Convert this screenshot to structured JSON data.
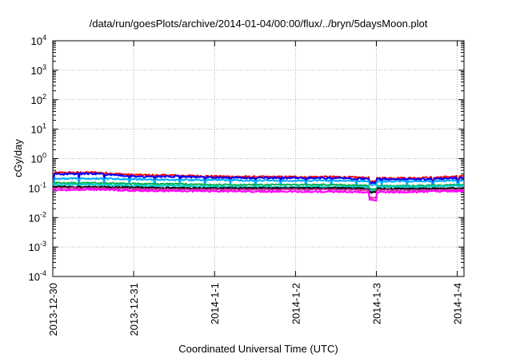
{
  "chart_data": {
    "type": "line",
    "title": "/data/run/goesPlots/archive/2014-01-04/00:00/flux/../bryn/5daysMoon.plot",
    "xlabel": "Coordinated Universal Time (UTC)",
    "ylabel": "cGy/day",
    "y_scale": "log",
    "ylim": [
      0.0001,
      10000
    ],
    "y_tick_labels": [
      {
        "base": "10",
        "exp": "-4"
      },
      {
        "base": "10",
        "exp": "-3"
      },
      {
        "base": "10",
        "exp": "-2"
      },
      {
        "base": "10",
        "exp": "-1"
      },
      {
        "base": "10",
        "exp": "0"
      },
      {
        "base": "10",
        "exp": "1"
      },
      {
        "base": "10",
        "exp": "2"
      },
      {
        "base": "10",
        "exp": "3"
      },
      {
        "base": "10",
        "exp": "4"
      }
    ],
    "xlim": [
      "2013-12-30",
      "2014-01-04 02:00"
    ],
    "x_tick_labels": [
      "2013-12-30",
      "2013-12-31",
      "2014-1-1",
      "2014-1-2",
      "2014-1-3",
      "2014-1-4"
    ],
    "grid": true,
    "series": [
      {
        "color": "#ff0000",
        "level": 0.28,
        "noise": 0.07,
        "points": [
          [
            "2013-12-30 00:00",
            0.33
          ],
          [
            "2013-12-30 12:00",
            0.34
          ],
          [
            "2013-12-31 00:00",
            0.28
          ],
          [
            "2013-12-31 12:00",
            0.27
          ],
          [
            "2014-01-01 00:00",
            0.25
          ],
          [
            "2014-01-01 12:00",
            0.24
          ],
          [
            "2014-01-02 00:00",
            0.24
          ],
          [
            "2014-01-02 12:00",
            0.24
          ],
          [
            "2014-01-03 00:00",
            0.22
          ],
          [
            "2014-01-03 12:00",
            0.22
          ],
          [
            "2014-01-04 02:00",
            0.25
          ]
        ]
      },
      {
        "color": "#0000ff",
        "level": 0.25,
        "noise": 0.07,
        "points": [
          [
            "2013-12-30 00:00",
            0.3
          ],
          [
            "2013-12-30 12:00",
            0.31
          ],
          [
            "2013-12-31 00:00",
            0.25
          ],
          [
            "2013-12-31 12:00",
            0.25
          ],
          [
            "2014-01-01 00:00",
            0.23
          ],
          [
            "2014-01-01 12:00",
            0.22
          ],
          [
            "2014-01-02 00:00",
            0.22
          ],
          [
            "2014-01-02 12:00",
            0.22
          ],
          [
            "2014-01-03 00:00",
            0.2
          ],
          [
            "2014-01-03 12:00",
            0.2
          ],
          [
            "2014-01-04 02:00",
            0.22
          ]
        ]
      },
      {
        "color": "#00aaff",
        "level": 0.2,
        "noise": 0.06,
        "points": [
          [
            "2013-12-30 00:00",
            0.21
          ],
          [
            "2013-12-30 12:00",
            0.21
          ],
          [
            "2013-12-31 00:00",
            0.2
          ],
          [
            "2013-12-31 12:00",
            0.19
          ],
          [
            "2014-01-01 00:00",
            0.19
          ],
          [
            "2014-01-01 12:00",
            0.18
          ],
          [
            "2014-01-02 00:00",
            0.18
          ],
          [
            "2014-01-02 12:00",
            0.18
          ],
          [
            "2014-01-03 00:00",
            0.17
          ],
          [
            "2014-01-03 12:00",
            0.17
          ],
          [
            "2014-01-04 02:00",
            0.18
          ]
        ]
      },
      {
        "color": "#00b050",
        "level": 0.14,
        "noise": 0.05,
        "points": [
          [
            "2013-12-30 00:00",
            0.15
          ],
          [
            "2013-12-30 12:00",
            0.15
          ],
          [
            "2013-12-31 00:00",
            0.14
          ],
          [
            "2013-12-31 12:00",
            0.14
          ],
          [
            "2014-01-01 00:00",
            0.13
          ],
          [
            "2014-01-01 12:00",
            0.13
          ],
          [
            "2014-01-02 00:00",
            0.13
          ],
          [
            "2014-01-02 12:00",
            0.13
          ],
          [
            "2014-01-03 00:00",
            0.12
          ],
          [
            "2014-01-03 12:00",
            0.12
          ],
          [
            "2014-01-04 02:00",
            0.13
          ]
        ]
      },
      {
        "color": "#00cccc",
        "level": 0.12,
        "noise": 0.05,
        "points": [
          [
            "2013-12-30 00:00",
            0.13
          ],
          [
            "2013-12-30 12:00",
            0.13
          ],
          [
            "2013-12-31 00:00",
            0.12
          ],
          [
            "2013-12-31 12:00",
            0.12
          ],
          [
            "2014-01-01 00:00",
            0.11
          ],
          [
            "2014-01-01 12:00",
            0.11
          ],
          [
            "2014-01-02 00:00",
            0.11
          ],
          [
            "2014-01-02 12:00",
            0.11
          ],
          [
            "2014-01-03 00:00",
            0.11
          ],
          [
            "2014-01-03 12:00",
            0.11
          ],
          [
            "2014-01-04 02:00",
            0.12
          ]
        ]
      },
      {
        "color": "#000000",
        "level": 0.105,
        "noise": 0.05,
        "points": [
          [
            "2013-12-30 00:00",
            0.11
          ],
          [
            "2013-12-30 12:00",
            0.11
          ],
          [
            "2013-12-31 00:00",
            0.105
          ],
          [
            "2013-12-31 12:00",
            0.1
          ],
          [
            "2014-01-01 00:00",
            0.1
          ],
          [
            "2014-01-01 12:00",
            0.1
          ],
          [
            "2014-01-02 00:00",
            0.1
          ],
          [
            "2014-01-02 12:00",
            0.1
          ],
          [
            "2014-01-03 00:00",
            0.095
          ],
          [
            "2014-01-03 12:00",
            0.095
          ],
          [
            "2014-01-04 02:00",
            0.1
          ]
        ]
      },
      {
        "color": "#cc3399",
        "level": 0.095,
        "noise": 0.05,
        "points": [
          [
            "2013-12-30 00:00",
            0.1
          ],
          [
            "2013-12-30 12:00",
            0.1
          ],
          [
            "2013-12-31 00:00",
            0.095
          ],
          [
            "2013-12-31 12:00",
            0.09
          ],
          [
            "2014-01-01 00:00",
            0.09
          ],
          [
            "2014-01-01 12:00",
            0.09
          ],
          [
            "2014-01-02 00:00",
            0.09
          ],
          [
            "2014-01-02 12:00",
            0.09
          ],
          [
            "2014-01-03 00:00",
            0.085
          ],
          [
            "2014-01-03 12:00",
            0.085
          ],
          [
            "2014-01-04 02:00",
            0.09
          ]
        ]
      },
      {
        "color": "#ff00ff",
        "level": 0.082,
        "noise": 0.07,
        "points": [
          [
            "2013-12-30 00:00",
            0.085
          ],
          [
            "2013-12-30 12:00",
            0.09
          ],
          [
            "2013-12-31 00:00",
            0.082
          ],
          [
            "2013-12-31 12:00",
            0.08
          ],
          [
            "2014-01-01 00:00",
            0.078
          ],
          [
            "2014-01-01 12:00",
            0.078
          ],
          [
            "2014-01-02 00:00",
            0.076
          ],
          [
            "2014-01-02 12:00",
            0.076
          ],
          [
            "2014-01-03 00:00",
            0.072
          ],
          [
            "2014-01-03 12:00",
            0.075
          ],
          [
            "2014-01-04 02:00",
            0.08
          ]
        ]
      }
    ]
  }
}
